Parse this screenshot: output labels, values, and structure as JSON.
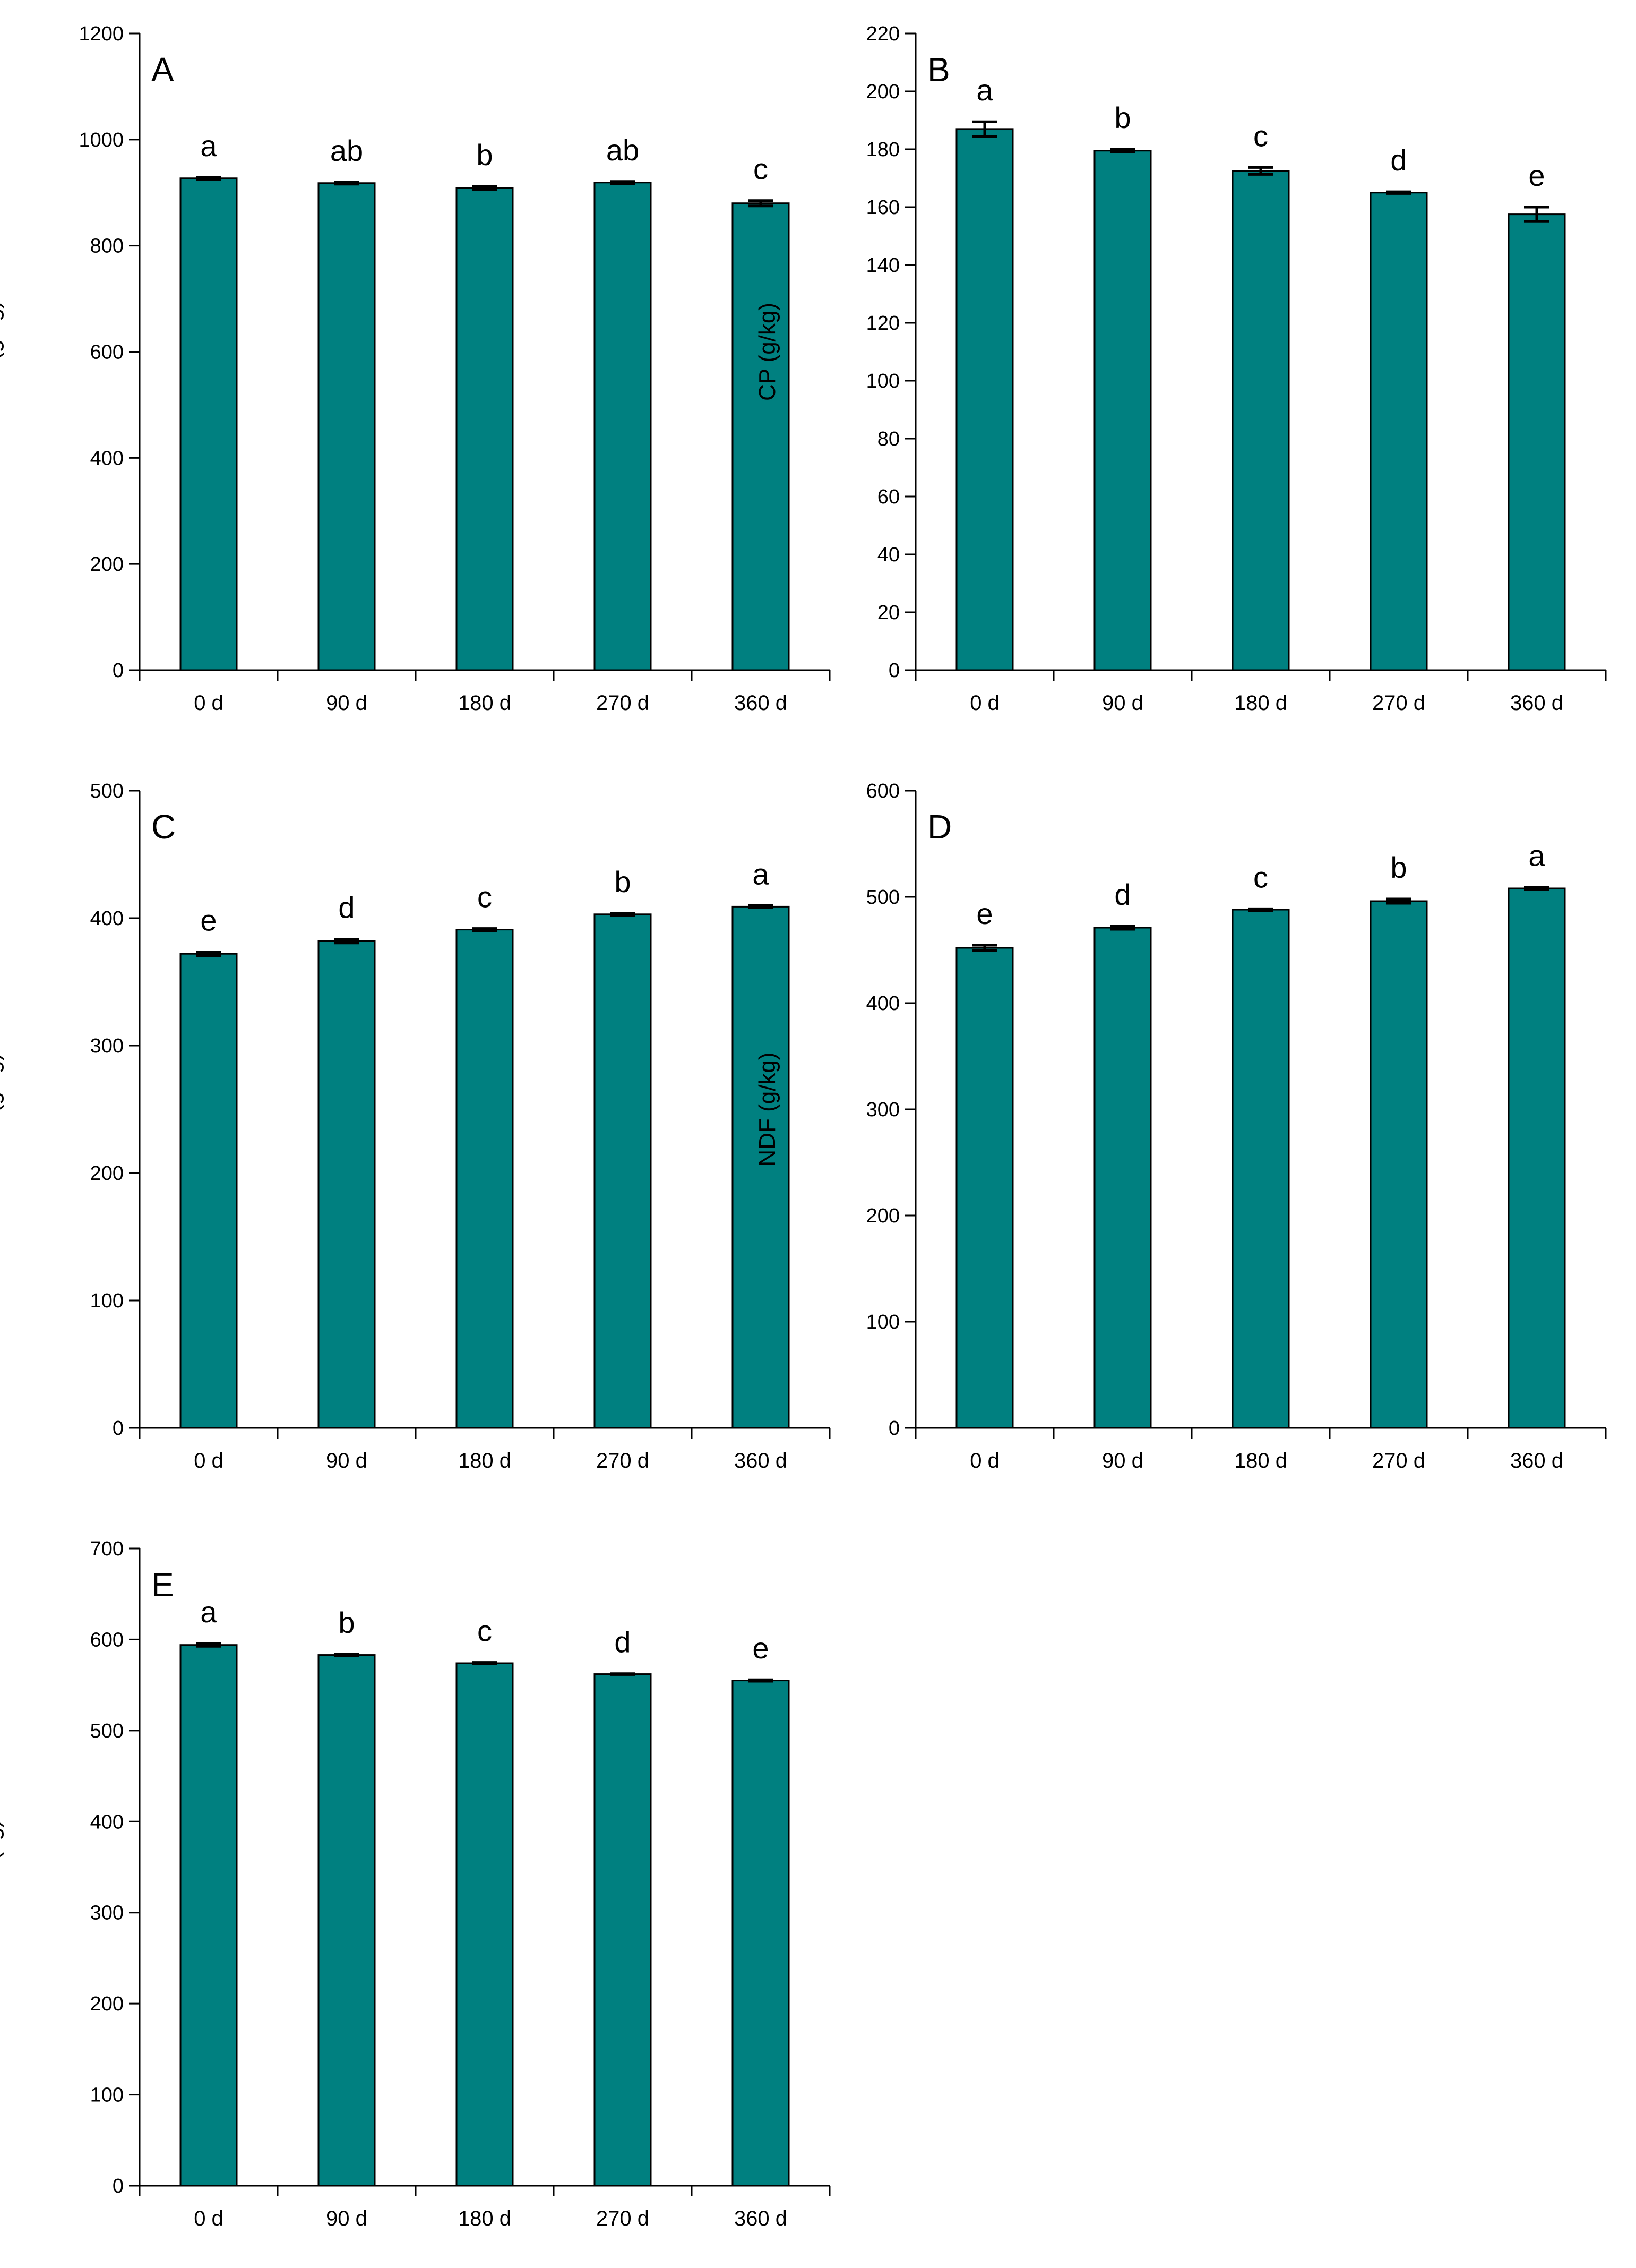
{
  "colors": {
    "bar_fill": "#008080",
    "bar_stroke": "#000000",
    "axis": "#000000"
  },
  "chart_data": [
    {
      "type": "bar",
      "panel": "A",
      "ylabel": "DM (g/kg)",
      "ylim": [
        0,
        1200
      ],
      "yticks": [
        0,
        200,
        400,
        600,
        800,
        1000,
        1200
      ],
      "categories": [
        "0 d",
        "90 d",
        "180 d",
        "270 d",
        "360 d"
      ],
      "values": [
        927,
        918,
        909,
        919,
        880
      ],
      "errors": [
        2,
        2,
        3,
        2,
        5
      ],
      "significance": [
        "a",
        "ab",
        "b",
        "ab",
        "c"
      ]
    },
    {
      "type": "bar",
      "panel": "B",
      "ylabel": "CP (g/kg)",
      "ylim": [
        0,
        220
      ],
      "yticks": [
        0,
        20,
        40,
        60,
        80,
        100,
        120,
        140,
        160,
        180,
        200,
        220
      ],
      "categories": [
        "0 d",
        "90 d",
        "180 d",
        "270 d",
        "360 d"
      ],
      "values": [
        187,
        179.5,
        172.5,
        165,
        157.5
      ],
      "errors": [
        2.5,
        0.5,
        1.2,
        0.3,
        2.5
      ],
      "significance": [
        "a",
        "b",
        "c",
        "d",
        "e"
      ]
    },
    {
      "type": "bar",
      "panel": "C",
      "ylabel": "ADF (g/kg)",
      "ylim": [
        0,
        500
      ],
      "yticks": [
        0,
        100,
        200,
        300,
        400,
        500
      ],
      "categories": [
        "0 d",
        "90 d",
        "180 d",
        "270 d",
        "360 d"
      ],
      "values": [
        372,
        382,
        391,
        403,
        409
      ],
      "errors": [
        1.5,
        1.5,
        0.8,
        0.8,
        0.8
      ],
      "significance": [
        "e",
        "d",
        "c",
        "b",
        "a"
      ]
    },
    {
      "type": "bar",
      "panel": "D",
      "ylabel": "NDF (g/kg)",
      "ylim": [
        0,
        600
      ],
      "yticks": [
        0,
        100,
        200,
        300,
        400,
        500,
        600
      ],
      "categories": [
        "0 d",
        "90 d",
        "180 d",
        "270 d",
        "360 d"
      ],
      "values": [
        452,
        471,
        488,
        496,
        508
      ],
      "errors": [
        2.5,
        1.5,
        0.8,
        2,
        1.2
      ],
      "significance": [
        "e",
        "d",
        "c",
        "b",
        "a"
      ]
    },
    {
      "type": "bar",
      "panel": "E",
      "ylabel": "TDN (kg)",
      "ylim": [
        0,
        700
      ],
      "yticks": [
        0,
        100,
        200,
        300,
        400,
        500,
        600,
        700
      ],
      "categories": [
        "0 d",
        "90 d",
        "180 d",
        "270 d",
        "360 d"
      ],
      "values": [
        594,
        583,
        574,
        562,
        555
      ],
      "errors": [
        1.5,
        1,
        0.8,
        0.5,
        0.8
      ],
      "significance": [
        "a",
        "b",
        "c",
        "d",
        "e"
      ]
    }
  ]
}
